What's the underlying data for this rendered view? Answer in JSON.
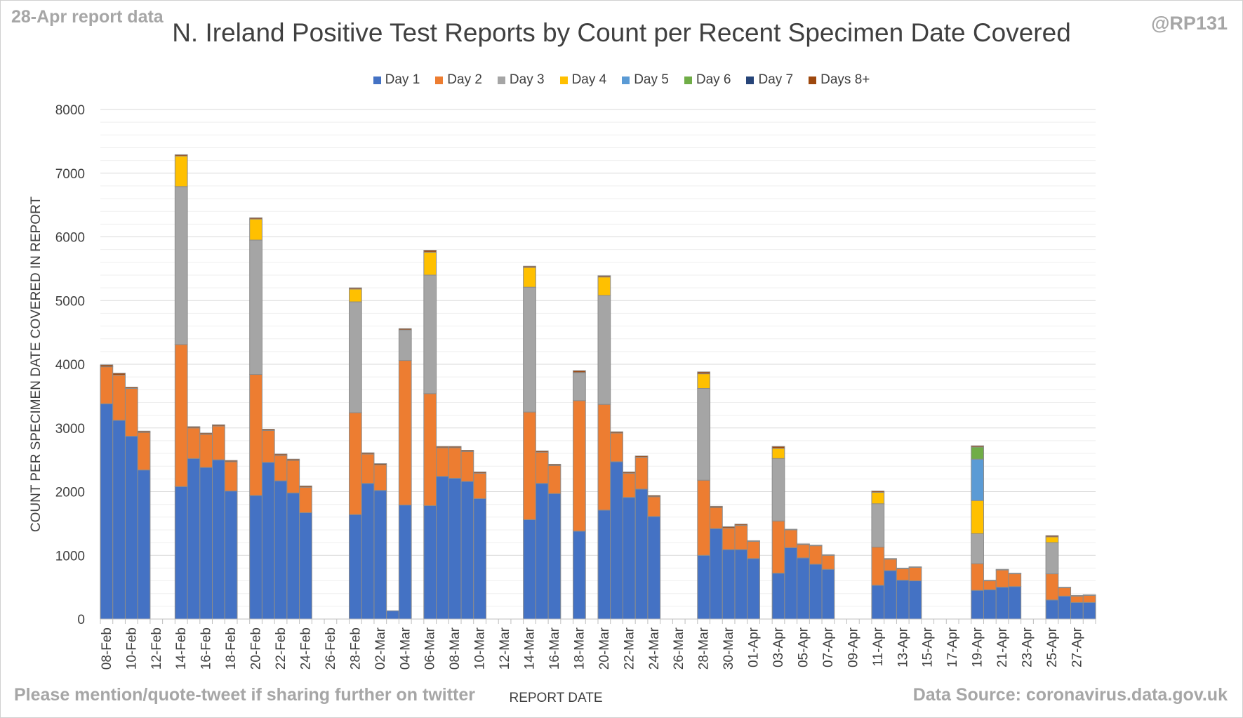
{
  "corner_left": "28-Apr report data",
  "corner_right": "@RP131",
  "footer_left": "Please mention/quote-tweet if sharing further on twitter",
  "footer_right": "Data Source: coronavirus.data.gov.uk",
  "chart_data": {
    "type": "bar",
    "stacked": true,
    "title": "N. Ireland Positive Test Reports by Count per Recent Specimen Date Covered",
    "xlabel": "REPORT DATE",
    "ylabel": "COUNT PER SPECIMEN DATE COVERED IN REPORT",
    "ylim": [
      0,
      8000
    ],
    "yticks": [
      0,
      1000,
      2000,
      3000,
      4000,
      5000,
      6000,
      7000,
      8000
    ],
    "grid": true,
    "legend_position": "top",
    "categories": [
      "08-Feb",
      "09-Feb",
      "10-Feb",
      "11-Feb",
      "12-Feb",
      "13-Feb",
      "14-Feb",
      "15-Feb",
      "16-Feb",
      "17-Feb",
      "18-Feb",
      "19-Feb",
      "20-Feb",
      "21-Feb",
      "22-Feb",
      "23-Feb",
      "24-Feb",
      "25-Feb",
      "26-Feb",
      "27-Feb",
      "28-Feb",
      "01-Mar",
      "02-Mar",
      "03-Mar",
      "04-Mar",
      "05-Mar",
      "06-Mar",
      "07-Mar",
      "08-Mar",
      "09-Mar",
      "10-Mar",
      "11-Mar",
      "12-Mar",
      "13-Mar",
      "14-Mar",
      "15-Mar",
      "16-Mar",
      "17-Mar",
      "18-Mar",
      "19-Mar",
      "20-Mar",
      "21-Mar",
      "22-Mar",
      "23-Mar",
      "24-Mar",
      "25-Mar",
      "26-Mar",
      "27-Mar",
      "28-Mar",
      "29-Mar",
      "30-Mar",
      "31-Mar",
      "01-Apr",
      "02-Apr",
      "03-Apr",
      "04-Apr",
      "05-Apr",
      "06-Apr",
      "07-Apr",
      "08-Apr",
      "09-Apr",
      "10-Apr",
      "11-Apr",
      "12-Apr",
      "13-Apr",
      "14-Apr",
      "15-Apr",
      "16-Apr",
      "17-Apr",
      "18-Apr",
      "19-Apr",
      "20-Apr",
      "21-Apr",
      "22-Apr",
      "23-Apr",
      "24-Apr",
      "25-Apr",
      "26-Apr",
      "27-Apr",
      "28-Apr"
    ],
    "tick_labels": [
      "08-Feb",
      "10-Feb",
      "12-Feb",
      "14-Feb",
      "16-Feb",
      "18-Feb",
      "20-Feb",
      "22-Feb",
      "24-Feb",
      "26-Feb",
      "28-Feb",
      "02-Mar",
      "04-Mar",
      "06-Mar",
      "08-Mar",
      "10-Mar",
      "12-Mar",
      "14-Mar",
      "16-Mar",
      "18-Mar",
      "20-Mar",
      "22-Mar",
      "24-Mar",
      "26-Mar",
      "28-Mar",
      "30-Mar",
      "01-Apr",
      "03-Apr",
      "05-Apr",
      "07-Apr",
      "09-Apr",
      "11-Apr",
      "13-Apr",
      "15-Apr",
      "17-Apr",
      "19-Apr",
      "21-Apr",
      "23-Apr",
      "25-Apr",
      "27-Apr"
    ],
    "series": [
      {
        "name": "Day 1",
        "color": "#4472c4",
        "values": [
          3380,
          3120,
          2870,
          2340,
          0,
          0,
          2080,
          2520,
          2380,
          2500,
          2010,
          0,
          1940,
          2460,
          2170,
          1980,
          1670,
          0,
          0,
          0,
          1640,
          2130,
          2020,
          130,
          1790,
          0,
          1780,
          2240,
          2210,
          2160,
          1890,
          0,
          0,
          0,
          1560,
          2130,
          1970,
          0,
          1380,
          0,
          1710,
          2470,
          1910,
          2040,
          1610,
          0,
          0,
          0,
          1000,
          1420,
          1090,
          1090,
          950,
          0,
          720,
          1120,
          960,
          860,
          780,
          0,
          0,
          0,
          530,
          760,
          610,
          600,
          0,
          0,
          0,
          0,
          450,
          460,
          500,
          510,
          0,
          0,
          300,
          360,
          260,
          260
        ]
      },
      {
        "name": "Day 2",
        "color": "#ed7d31",
        "values": [
          580,
          710,
          750,
          590,
          0,
          0,
          2230,
          480,
          520,
          530,
          460,
          0,
          1900,
          500,
          400,
          510,
          400,
          0,
          0,
          0,
          1600,
          460,
          400,
          0,
          2270,
          0,
          1760,
          450,
          480,
          470,
          400,
          0,
          0,
          0,
          1690,
          490,
          440,
          0,
          2050,
          0,
          1660,
          450,
          380,
          500,
          310,
          0,
          0,
          0,
          1180,
          330,
          340,
          380,
          270,
          0,
          820,
          280,
          210,
          290,
          220,
          0,
          0,
          0,
          600,
          180,
          180,
          210,
          0,
          0,
          0,
          0,
          420,
          140,
          270,
          200,
          0,
          0,
          410,
          130,
          100,
          110
        ]
      },
      {
        "name": "Day 3",
        "color": "#a5a5a5",
        "values": [
          0,
          0,
          0,
          0,
          0,
          0,
          2480,
          0,
          0,
          0,
          0,
          0,
          2110,
          0,
          0,
          0,
          0,
          0,
          0,
          0,
          1740,
          0,
          0,
          0,
          480,
          0,
          1860,
          0,
          0,
          0,
          0,
          0,
          0,
          0,
          1960,
          0,
          0,
          0,
          440,
          0,
          1710,
          0,
          0,
          0,
          0,
          0,
          0,
          0,
          1440,
          0,
          0,
          0,
          0,
          0,
          980,
          0,
          0,
          0,
          0,
          0,
          0,
          0,
          680,
          0,
          0,
          0,
          0,
          0,
          0,
          0,
          470,
          0,
          0,
          0,
          0,
          0,
          490,
          0,
          0,
          0
        ]
      },
      {
        "name": "Day 4",
        "color": "#ffc000",
        "values": [
          0,
          0,
          0,
          0,
          0,
          0,
          480,
          0,
          0,
          0,
          0,
          0,
          330,
          0,
          0,
          0,
          0,
          0,
          0,
          0,
          200,
          0,
          0,
          0,
          0,
          0,
          360,
          0,
          0,
          0,
          0,
          0,
          0,
          0,
          310,
          0,
          0,
          0,
          0,
          0,
          290,
          0,
          0,
          0,
          0,
          0,
          0,
          0,
          230,
          0,
          0,
          0,
          0,
          0,
          160,
          0,
          0,
          0,
          0,
          0,
          0,
          0,
          180,
          0,
          0,
          0,
          0,
          0,
          0,
          0,
          520,
          0,
          0,
          0,
          0,
          0,
          90,
          0,
          0,
          0
        ]
      },
      {
        "name": "Day 5",
        "color": "#5b9bd5",
        "values": [
          0,
          0,
          0,
          0,
          0,
          0,
          0,
          0,
          0,
          0,
          0,
          0,
          0,
          0,
          0,
          0,
          0,
          0,
          0,
          0,
          0,
          0,
          0,
          0,
          0,
          0,
          0,
          0,
          0,
          0,
          0,
          0,
          0,
          0,
          0,
          0,
          0,
          0,
          0,
          0,
          0,
          0,
          0,
          0,
          0,
          0,
          0,
          0,
          0,
          0,
          0,
          0,
          0,
          0,
          0,
          0,
          0,
          0,
          0,
          0,
          0,
          0,
          0,
          0,
          0,
          0,
          0,
          0,
          0,
          0,
          650,
          0,
          0,
          0,
          0,
          0,
          0,
          0,
          0,
          0
        ]
      },
      {
        "name": "Day 6",
        "color": "#70ad47",
        "values": [
          0,
          0,
          0,
          0,
          0,
          0,
          0,
          0,
          0,
          0,
          0,
          0,
          0,
          0,
          0,
          0,
          0,
          0,
          0,
          0,
          0,
          0,
          0,
          0,
          0,
          0,
          0,
          0,
          0,
          0,
          0,
          0,
          0,
          0,
          0,
          0,
          0,
          0,
          0,
          0,
          0,
          0,
          0,
          0,
          0,
          0,
          0,
          0,
          0,
          0,
          0,
          0,
          0,
          0,
          0,
          0,
          0,
          0,
          0,
          0,
          0,
          0,
          0,
          0,
          0,
          0,
          0,
          0,
          0,
          0,
          190,
          0,
          0,
          0,
          0,
          0,
          0,
          0,
          0,
          0
        ]
      },
      {
        "name": "Day 7",
        "color": "#264478",
        "values": [
          0,
          0,
          0,
          0,
          0,
          0,
          0,
          0,
          0,
          0,
          0,
          0,
          0,
          0,
          0,
          0,
          0,
          0,
          0,
          0,
          0,
          0,
          0,
          0,
          0,
          0,
          0,
          0,
          0,
          0,
          0,
          0,
          0,
          0,
          0,
          0,
          0,
          0,
          0,
          0,
          0,
          0,
          0,
          0,
          0,
          0,
          0,
          0,
          0,
          0,
          0,
          0,
          0,
          0,
          0,
          0,
          0,
          0,
          0,
          0,
          0,
          0,
          0,
          0,
          0,
          0,
          0,
          0,
          0,
          0,
          0,
          0,
          0,
          0,
          0,
          0,
          0,
          0,
          0,
          0
        ]
      },
      {
        "name": "Days 8+",
        "color": "#9e480e",
        "values": [
          30,
          30,
          20,
          20,
          0,
          0,
          20,
          20,
          20,
          20,
          20,
          0,
          20,
          20,
          20,
          20,
          20,
          0,
          0,
          0,
          20,
          20,
          20,
          0,
          20,
          0,
          30,
          20,
          20,
          20,
          20,
          0,
          0,
          0,
          20,
          20,
          20,
          0,
          30,
          0,
          20,
          20,
          20,
          20,
          20,
          0,
          0,
          0,
          30,
          20,
          20,
          20,
          10,
          0,
          30,
          10,
          10,
          10,
          10,
          0,
          0,
          0,
          20,
          10,
          10,
          10,
          0,
          0,
          0,
          0,
          20,
          10,
          10,
          10,
          0,
          0,
          20,
          10,
          10,
          10
        ]
      }
    ]
  }
}
